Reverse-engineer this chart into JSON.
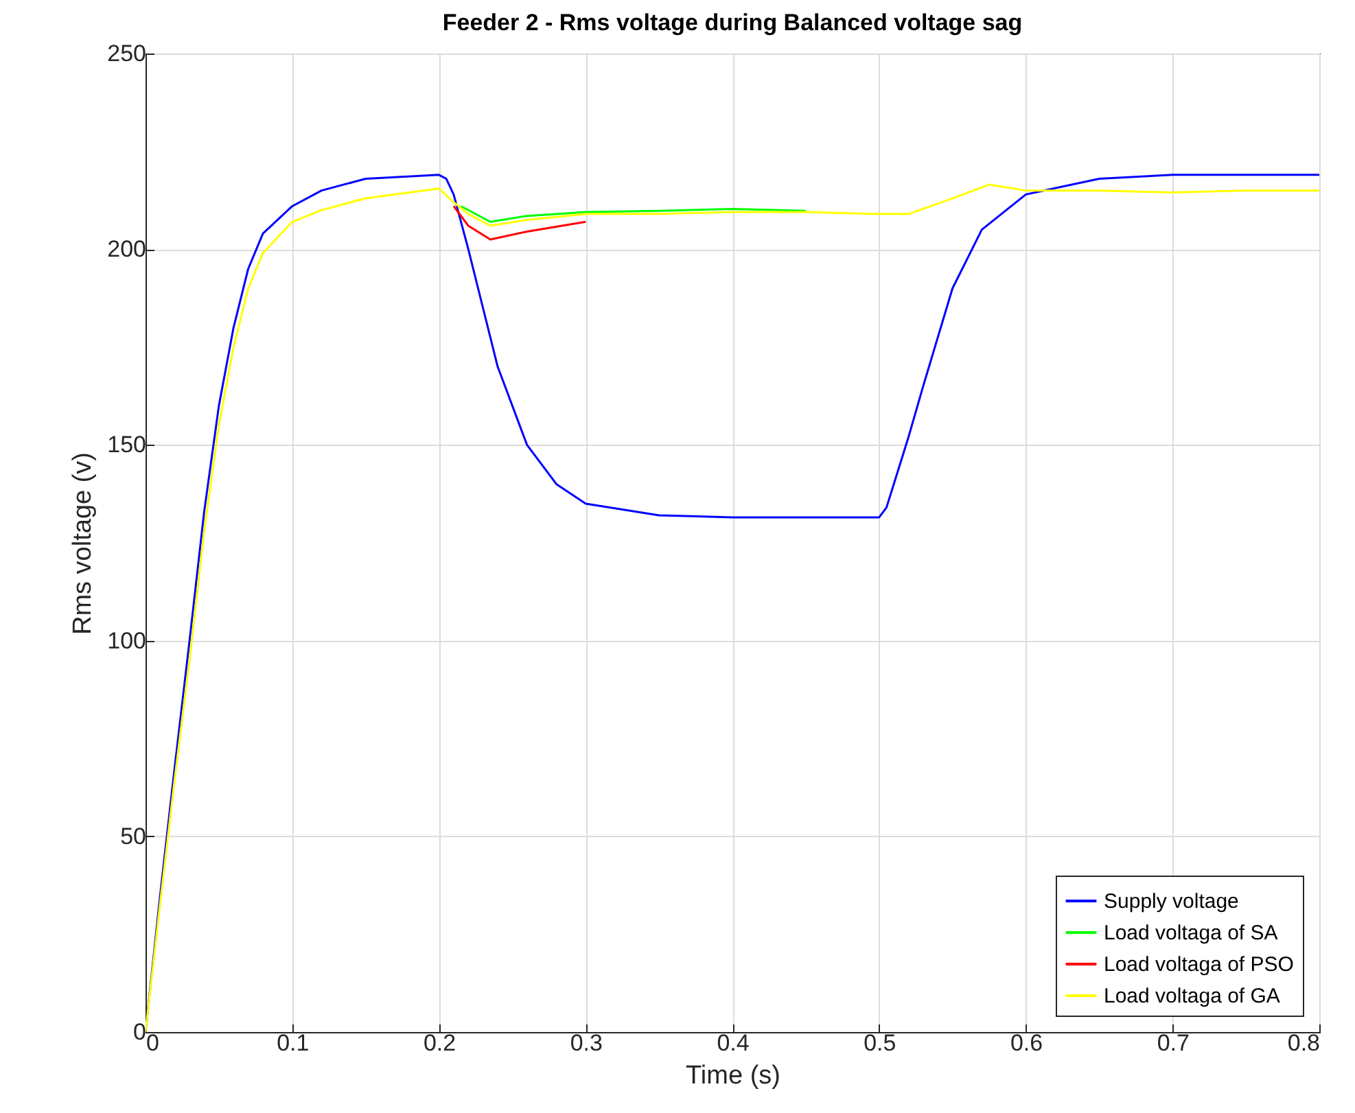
{
  "chart_data": {
    "type": "line",
    "title": "Feeder 2 - Rms voltage during Balanced voltage sag",
    "xlabel": "Time (s)",
    "ylabel": "Rms voltage (v)",
    "xlim": [
      0,
      0.8
    ],
    "xticks": [
      {
        "value": 0,
        "label": "0"
      },
      0.1,
      0.2,
      0.3,
      0.4,
      0.5,
      0.6,
      0.7,
      0.8
    ],
    "ylim": [
      0,
      250
    ],
    "yticks": [
      0,
      50,
      100,
      150,
      200,
      250
    ],
    "grid": true,
    "legend": "bottom right",
    "line_style": "solid",
    "series": [
      {
        "name": "Supply voltage",
        "color": "#0000ff",
        "x": [
          0,
          0.01,
          0.02,
          0.03,
          0.04,
          0.05,
          0.06,
          0.07,
          0.08,
          0.1,
          0.12,
          0.15,
          0.2,
          0.205,
          0.21,
          0.22,
          0.23,
          0.24,
          0.26,
          0.28,
          0.3,
          0.35,
          0.4,
          0.45,
          0.5,
          0.505,
          0.51,
          0.52,
          0.53,
          0.55,
          0.57,
          0.6,
          0.65,
          0.7,
          0.8
        ],
        "values": [
          0,
          35,
          68,
          100,
          133,
          160,
          180,
          195,
          204,
          211,
          215,
          218,
          219,
          218,
          214,
          200,
          185,
          170,
          150,
          140,
          135,
          132,
          131.5,
          131.5,
          131.5,
          134,
          140,
          152,
          165,
          190,
          205,
          214,
          218,
          219,
          219
        ]
      },
      {
        "name": "Load voltaga of SA",
        "color": "#00ff00",
        "x": [
          0.215,
          0.235,
          0.26,
          0.3,
          0.35,
          0.4,
          0.45
        ],
        "values": [
          211,
          207,
          208.5,
          209.5,
          209.8,
          210.3,
          209.8
        ]
      },
      {
        "name": "Load voltaga of PSO",
        "color": "#ff0000",
        "x": [
          0.21,
          0.22,
          0.235,
          0.26,
          0.3
        ],
        "values": [
          211,
          206,
          202.5,
          204.5,
          207
        ]
      },
      {
        "name": "Load voltaga of GA",
        "color": "#ffff00",
        "x": [
          0,
          0.01,
          0.02,
          0.03,
          0.04,
          0.05,
          0.06,
          0.07,
          0.08,
          0.1,
          0.12,
          0.15,
          0.2,
          0.21,
          0.22,
          0.235,
          0.26,
          0.3,
          0.35,
          0.4,
          0.45,
          0.5,
          0.52,
          0.55,
          0.575,
          0.6,
          0.65,
          0.7,
          0.75,
          0.8
        ],
        "values": [
          0,
          33,
          65,
          95,
          128,
          155,
          175,
          190,
          199,
          207,
          210,
          213,
          215.5,
          212,
          209,
          206,
          207.5,
          209,
          209,
          209.5,
          209.5,
          209,
          209,
          213,
          216.5,
          215,
          215,
          214.5,
          215,
          215
        ]
      }
    ]
  }
}
